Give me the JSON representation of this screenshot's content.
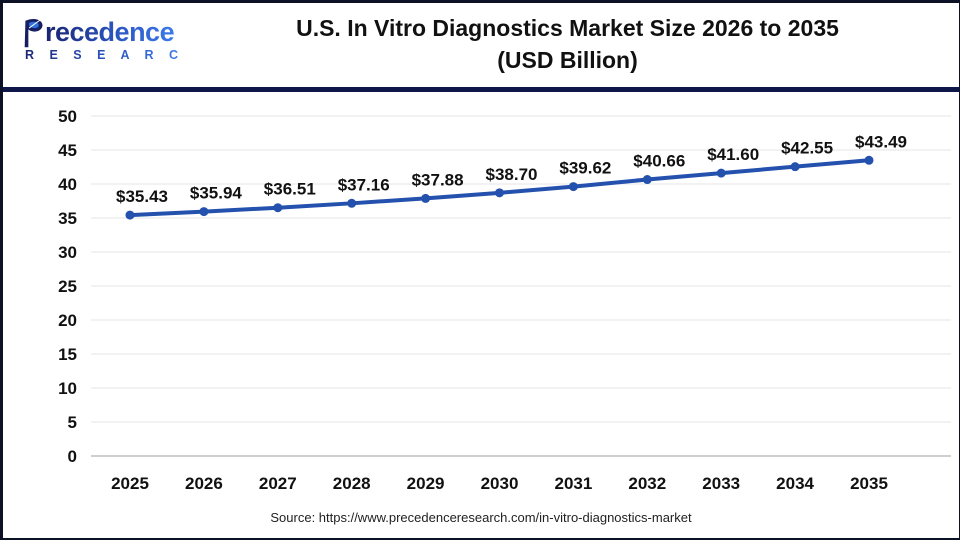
{
  "logo": {
    "name_first_letter": "P",
    "name_rest": "recedence",
    "subtitle": "R E S E A R C H"
  },
  "header": {
    "title_line1": "U.S. In Vitro Diagnostics Market Size 2026 to 2035",
    "title_line2": "(USD Billion)"
  },
  "source_text": "Source: https://www.precedenceresearch.com/in-vitro-diagnostics-market",
  "colors": {
    "line": "#2351ad",
    "marker": "#2351ad",
    "divider_navy": "#0e164a",
    "grid": "#e4e4e4",
    "zero_line": "#c8c8c8",
    "label_text": "#111111",
    "logo_navy": "#171f63",
    "logo_blue": "#2f6fdd"
  },
  "chart_data": {
    "type": "line",
    "title": "U.S. In Vitro Diagnostics Market Size 2026 to 2035 (USD Billion)",
    "categories": [
      "2025",
      "2026",
      "2027",
      "2028",
      "2029",
      "2030",
      "2031",
      "2032",
      "2033",
      "2034",
      "2035"
    ],
    "values": [
      35.43,
      35.94,
      36.51,
      37.16,
      37.88,
      38.7,
      39.62,
      40.66,
      41.6,
      42.55,
      43.49
    ],
    "data_labels": [
      "$35.43",
      "$35.94",
      "$36.51",
      "$37.16",
      "$37.88",
      "$38.70",
      "$39.62",
      "$40.66",
      "$41.60",
      "$42.55",
      "$43.49"
    ],
    "ylim": [
      0,
      50
    ],
    "ytick_step": 5,
    "grid": "horizontal",
    "legend": "none",
    "xlabel": "",
    "ylabel": ""
  }
}
